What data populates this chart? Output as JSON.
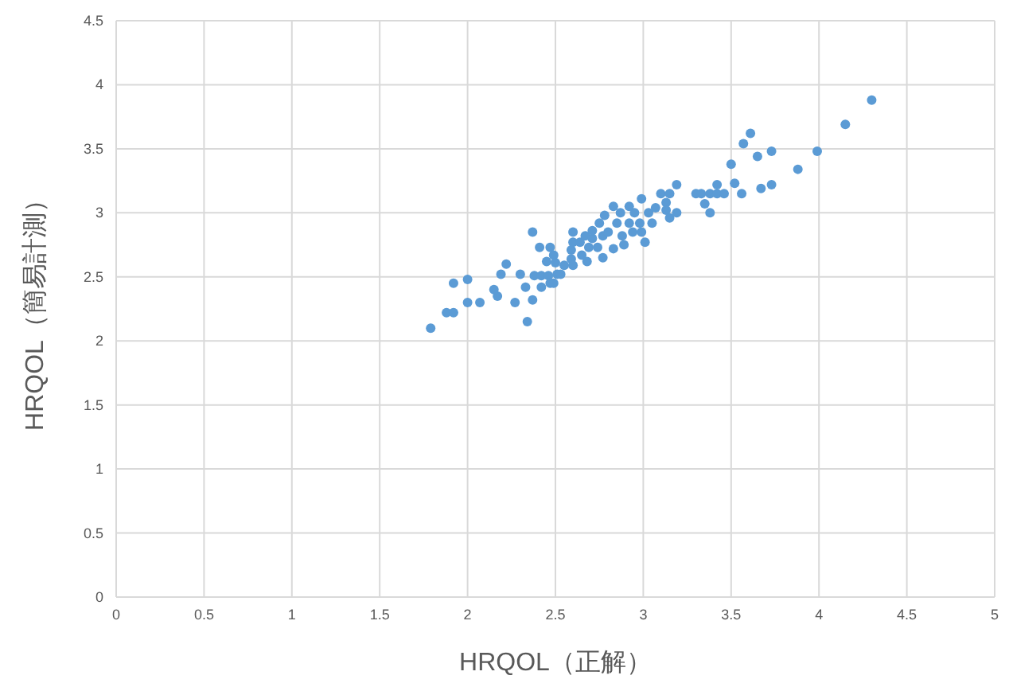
{
  "chart_data": {
    "type": "scatter",
    "xlabel": "HRQOL（正解）",
    "ylabel": "HRQOL（簡易計測）",
    "marker": "circle",
    "grid": true,
    "xlim": [
      0,
      5
    ],
    "ylim": [
      0,
      4.5
    ],
    "xticks": [
      0,
      0.5,
      1,
      1.5,
      2,
      2.5,
      3,
      3.5,
      4,
      4.5,
      5
    ],
    "yticks": [
      0,
      0.5,
      1,
      1.5,
      2,
      2.5,
      3,
      3.5,
      4,
      4.5
    ],
    "series": [
      {
        "color": "#5b9bd5",
        "x": [
          1.79,
          1.88,
          1.92,
          1.92,
          2.0,
          2.0,
          2.07,
          2.17,
          2.19,
          2.22,
          2.15,
          2.27,
          2.34,
          2.3,
          2.33,
          2.37,
          2.38,
          2.37,
          2.42,
          2.46,
          2.42,
          2.47,
          2.41,
          2.47,
          2.49,
          2.45,
          2.51,
          2.49,
          2.5,
          2.55,
          2.53,
          2.59,
          2.59,
          2.6,
          2.6,
          2.64,
          2.6,
          2.65,
          2.67,
          2.69,
          2.68,
          2.71,
          2.74,
          2.75,
          2.77,
          2.78,
          2.8,
          2.83,
          2.85,
          2.87,
          2.83,
          2.88,
          2.92,
          2.95,
          2.94,
          2.99,
          2.98,
          2.99,
          3.01,
          3.03,
          3.05,
          3.07,
          3.1,
          3.13,
          3.13,
          3.15,
          3.15,
          3.19,
          3.19,
          3.3,
          3.33,
          3.35,
          3.38,
          3.38,
          3.42,
          3.42,
          3.46,
          3.5,
          3.52,
          3.56,
          3.57,
          3.61,
          3.65,
          3.67,
          3.73,
          3.73,
          3.88,
          3.99,
          4.15,
          4.3,
          2.92,
          2.71,
          2.77,
          2.89
        ],
        "values": [
          2.1,
          2.22,
          2.22,
          2.45,
          2.48,
          2.3,
          2.3,
          2.35,
          2.52,
          2.6,
          2.4,
          2.3,
          2.15,
          2.52,
          2.42,
          2.32,
          2.51,
          2.85,
          2.51,
          2.51,
          2.42,
          2.45,
          2.73,
          2.73,
          2.67,
          2.62,
          2.52,
          2.45,
          2.61,
          2.59,
          2.52,
          2.64,
          2.71,
          2.85,
          2.77,
          2.77,
          2.59,
          2.67,
          2.82,
          2.73,
          2.62,
          2.8,
          2.73,
          2.92,
          2.82,
          2.98,
          2.85,
          3.05,
          2.92,
          3.0,
          2.72,
          2.82,
          2.92,
          3.0,
          2.85,
          3.11,
          2.92,
          2.85,
          2.77,
          3.0,
          2.92,
          3.04,
          3.15,
          3.08,
          3.02,
          3.15,
          2.96,
          3.22,
          3.0,
          3.15,
          3.15,
          3.07,
          3.15,
          3.0,
          3.22,
          3.15,
          3.15,
          3.38,
          3.23,
          3.15,
          3.54,
          3.62,
          3.44,
          3.19,
          3.48,
          3.22,
          3.34,
          3.48,
          3.69,
          3.88,
          3.05,
          2.86,
          2.65,
          2.75
        ]
      }
    ]
  }
}
